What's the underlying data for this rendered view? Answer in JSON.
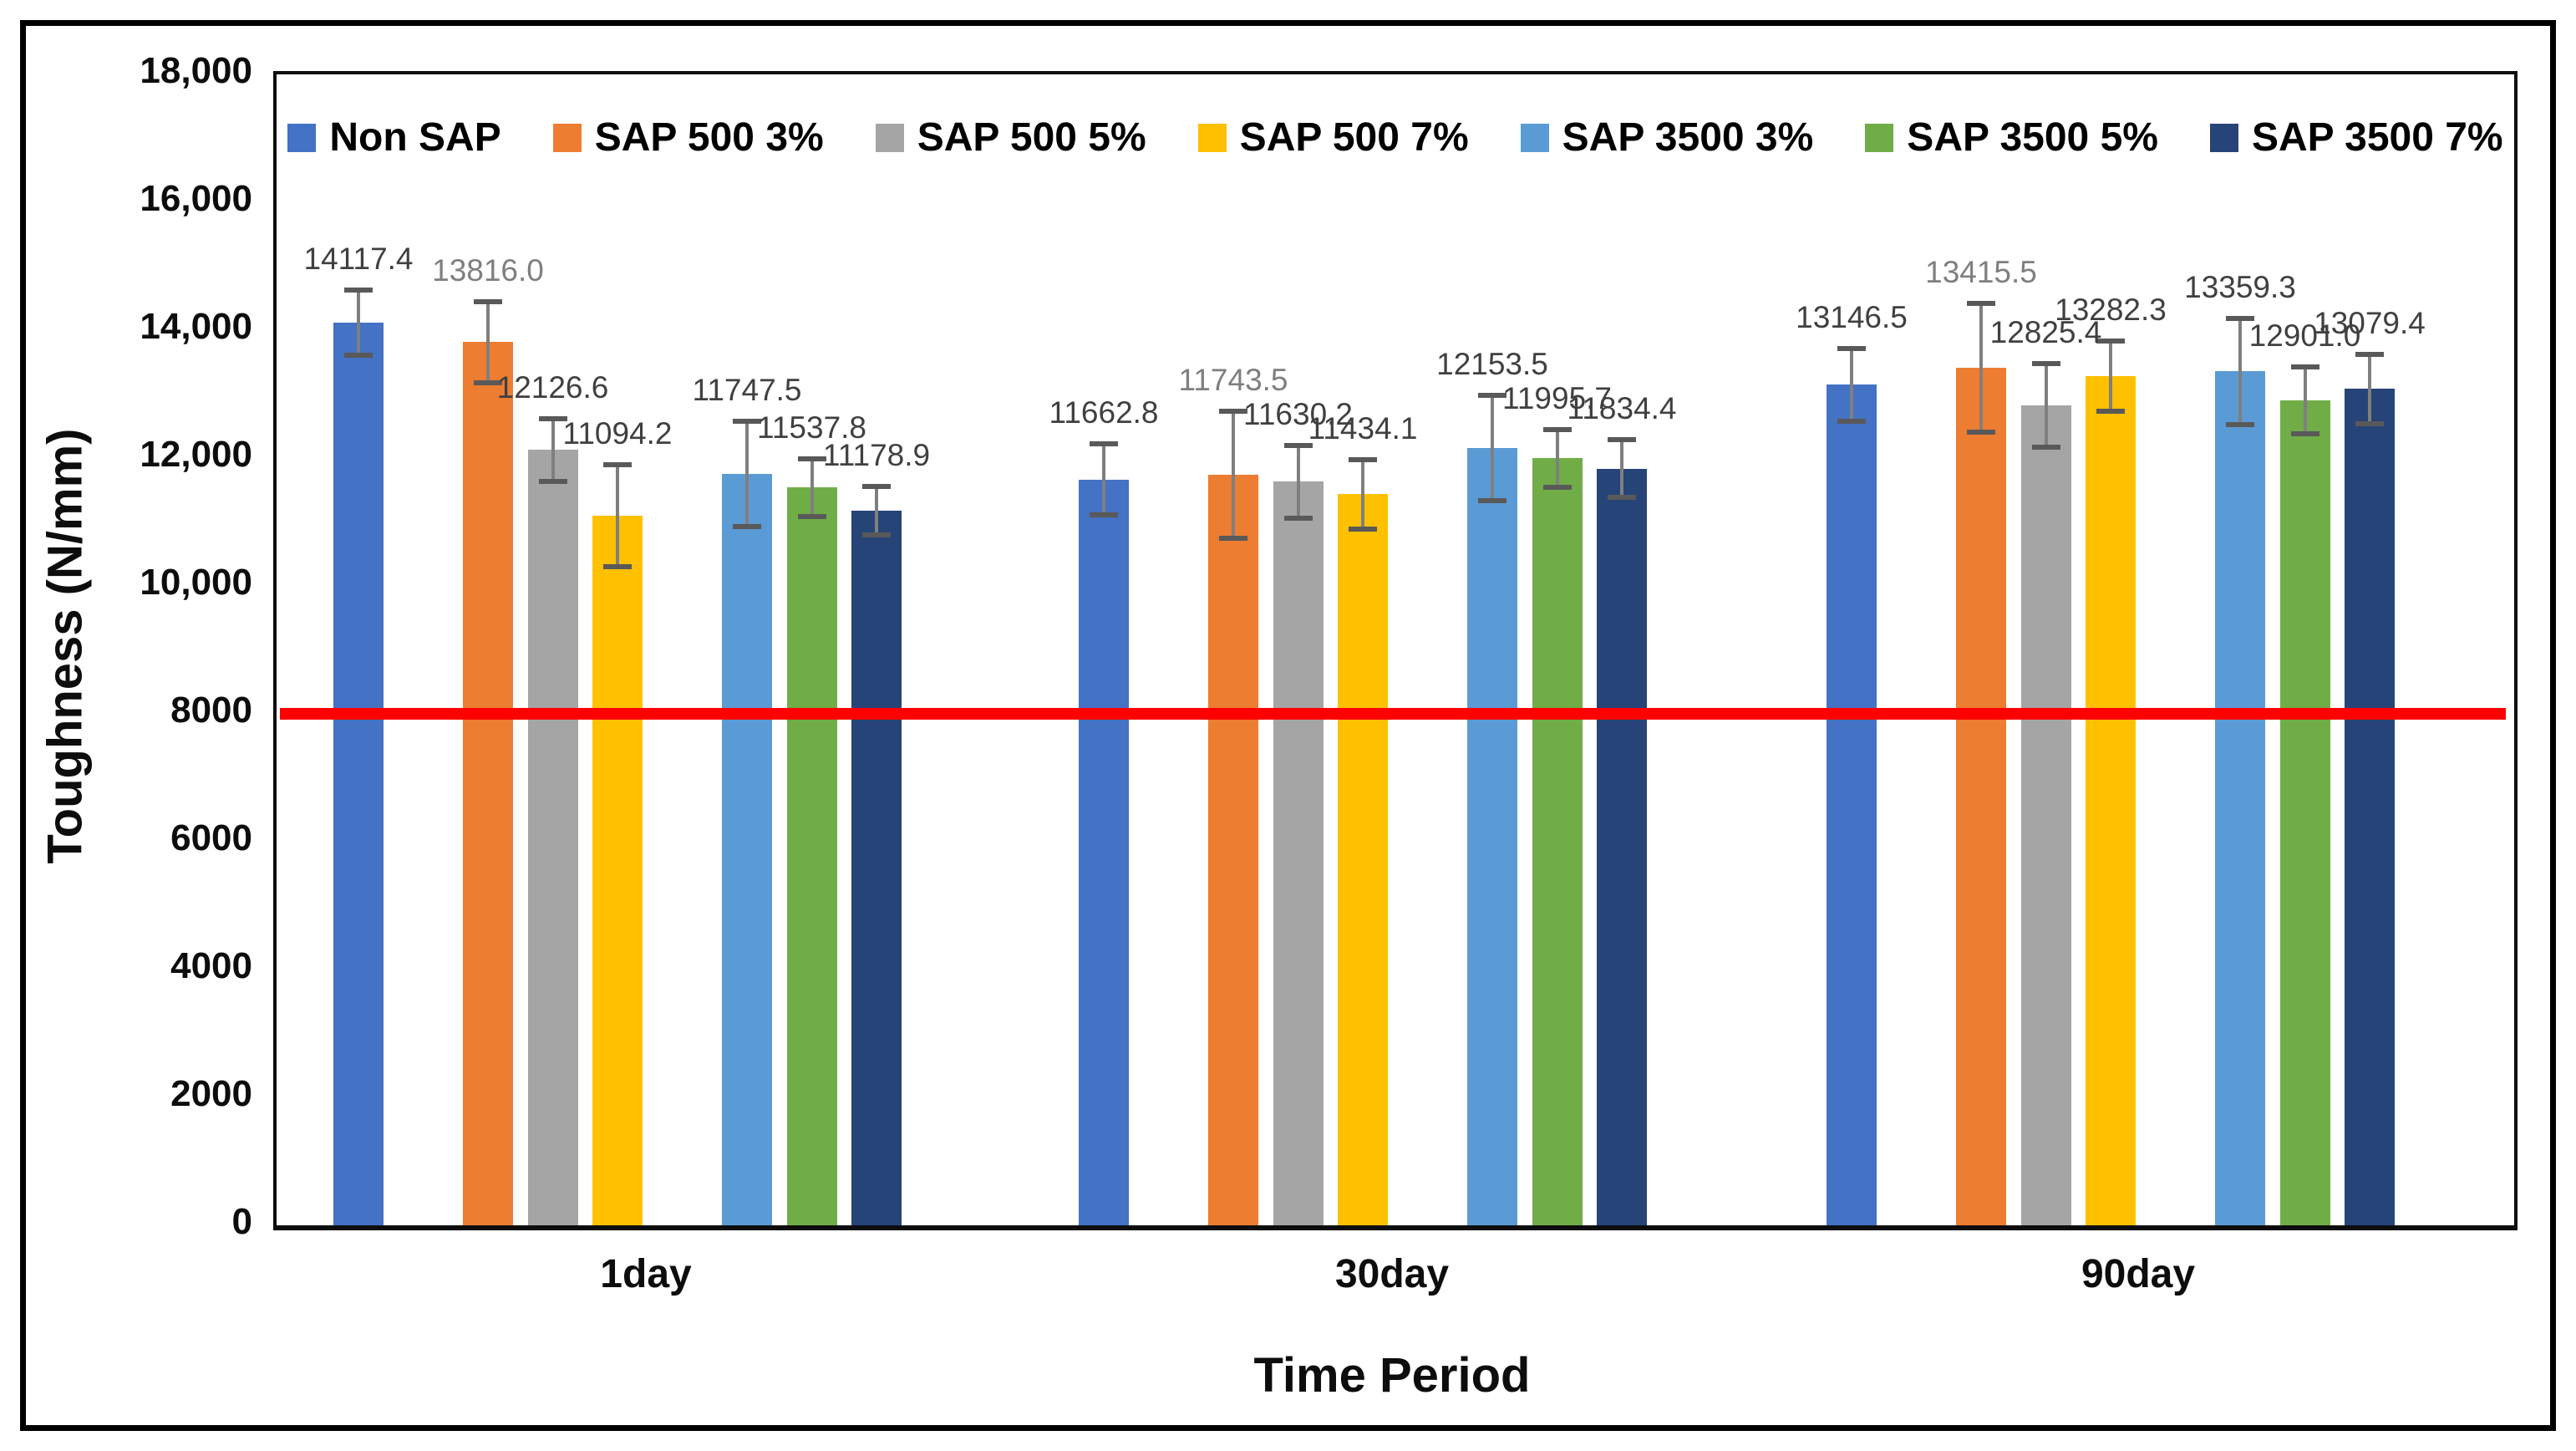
{
  "chart_data": {
    "type": "bar",
    "title": "",
    "xlabel": "Time Period",
    "ylabel": "Toughness (N/mm)",
    "ylim": [
      0,
      18000
    ],
    "grid": false,
    "legend_position": "top-center",
    "background": "#FFFFFF",
    "reference_line": {
      "value": 8000,
      "color": "#FF0000"
    },
    "yticks": [
      {
        "value": 18000,
        "label": "18,000"
      },
      {
        "value": 16000,
        "label": "16,000"
      },
      {
        "value": 14000,
        "label": "14,000"
      },
      {
        "value": 12000,
        "label": "12,000"
      },
      {
        "value": 10000,
        "label": "10,000"
      },
      {
        "value": 8000,
        "label": "8000"
      },
      {
        "value": 6000,
        "label": "6000"
      },
      {
        "value": 4000,
        "label": "4000"
      },
      {
        "value": 2000,
        "label": "2000"
      },
      {
        "value": 0,
        "label": "0"
      }
    ],
    "categories": [
      "1day",
      "30day",
      "90day"
    ],
    "series": [
      {
        "name": "Non SAP",
        "color": "#4472C4",
        "label_color": "#404040",
        "values": [
          14117.4,
          11662.8,
          13146.5
        ],
        "labels": [
          "14117.4",
          "11662.8",
          "13146.5"
        ],
        "errors": [
          513,
          557,
          565
        ]
      },
      {
        "name": "SAP 500 3%",
        "color": "#ED7D31",
        "label_color": "#7F7F7F",
        "values": [
          13816.0,
          11743.5,
          13415.5
        ],
        "labels": [
          "13816.0",
          "11743.5",
          "13415.5"
        ],
        "errors": [
          634,
          995,
          1005
        ]
      },
      {
        "name": "SAP 500 5%",
        "color": "#A5A5A5",
        "label_color": "#404040",
        "values": [
          12126.6,
          11630.2,
          12825.4
        ],
        "labels": [
          "12126.6",
          "11630.2",
          "12825.4"
        ],
        "errors": [
          494,
          570,
          655
        ]
      },
      {
        "name": "SAP 500 7%",
        "color": "#FFC000",
        "label_color": "#404040",
        "values": [
          11094.2,
          11434.1,
          13282.3
        ],
        "labels": [
          "11094.2",
          "11434.1",
          "13282.3"
        ],
        "errors": [
          796,
          545,
          545
        ]
      },
      {
        "name": "SAP 3500 3%",
        "color": "#5B9BD5",
        "label_color": "#404040",
        "values": [
          11747.5,
          12153.5,
          13359.3
        ],
        "labels": [
          "11747.5",
          "12153.5",
          "13359.3"
        ],
        "errors": [
          822,
          825,
          830
        ]
      },
      {
        "name": "SAP 3500 5%",
        "color": "#70AD47",
        "label_color": "#404040",
        "values": [
          11537.8,
          11995.7,
          12901.0
        ],
        "labels": [
          "11537.8",
          "11995.7",
          "12901.0"
        ],
        "errors": [
          455,
          455,
          520
        ]
      },
      {
        "name": "SAP 3500 7%",
        "color": "#264478",
        "label_color": "#404040",
        "values": [
          11178.9,
          11834.4,
          13079.4
        ],
        "labels": [
          "11178.9",
          "11834.4",
          "13079.4"
        ],
        "errors": [
          380,
          455,
          540
        ]
      }
    ]
  }
}
